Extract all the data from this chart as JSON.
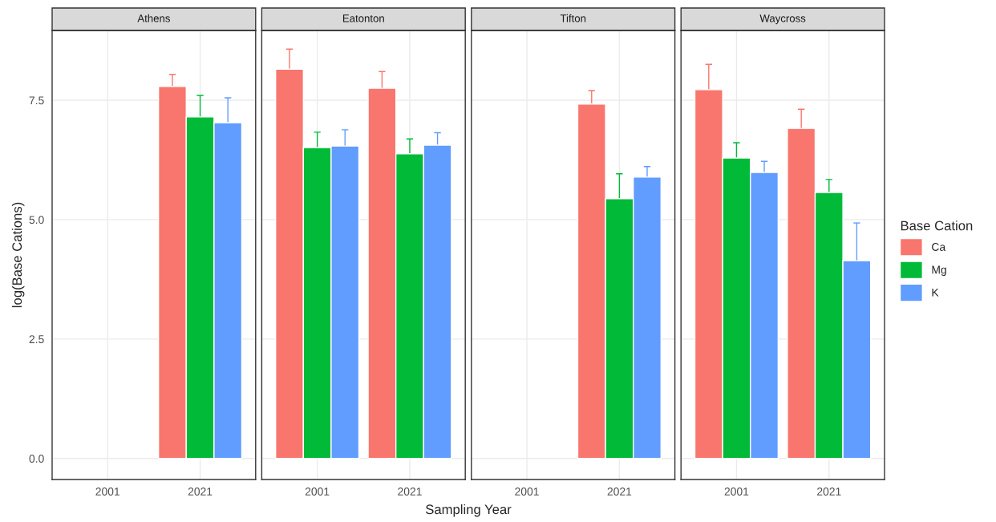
{
  "chart_data": [
    {
      "type": "bar",
      "title": "Athens",
      "categories": [
        "2001",
        "2021"
      ],
      "ylabel": "log(Base Cations)",
      "ylim": [
        -0.44,
        8.96
      ],
      "yticks": [
        {
          "value": 0,
          "label": "0.0"
        },
        {
          "value": 2.5,
          "label": "2.5"
        },
        {
          "value": 5,
          "label": "5.0"
        },
        {
          "value": 7.5,
          "label": "7.5"
        }
      ],
      "grid": true,
      "legend": "right",
      "legend_title": "Base Cation",
      "series": [
        {
          "name": "Ca",
          "color": "#f8766d",
          "values": [
            null,
            7.79
          ],
          "errors": [
            null,
            0.25
          ]
        },
        {
          "name": "Mg",
          "color": "#00ba38",
          "values": [
            null,
            7.15
          ],
          "errors": [
            null,
            0.45
          ]
        },
        {
          "name": "K",
          "color": "#619cff",
          "values": [
            null,
            7.03
          ],
          "errors": [
            null,
            0.52
          ]
        }
      ]
    },
    {
      "type": "bar",
      "title": "Eatonton",
      "categories": [
        "2001",
        "2021"
      ],
      "xlabel": "Sampling Year",
      "ylim": [
        -0.44,
        8.96
      ],
      "yticks": [
        {
          "value": 0,
          "label": null
        },
        {
          "value": 2.5,
          "label": null
        },
        {
          "value": 5,
          "label": null
        },
        {
          "value": 7.5,
          "label": null
        }
      ],
      "grid": true,
      "tick_labels": "x",
      "series": [
        {
          "color": "#f8766d",
          "values": [
            8.15,
            7.75
          ],
          "errors": [
            0.42,
            0.35
          ]
        },
        {
          "color": "#00ba38",
          "values": [
            6.51,
            6.38
          ],
          "errors": [
            0.32,
            0.31
          ]
        },
        {
          "color": "#619cff",
          "values": [
            6.54,
            6.56
          ],
          "errors": [
            0.34,
            0.26
          ]
        }
      ]
    },
    {
      "type": "bar",
      "title": "Tifton",
      "categories": [
        "2001",
        "2021"
      ],
      "ylim": [
        -0.44,
        8.96
      ],
      "yticks": [
        {
          "value": 0,
          "label": null
        },
        {
          "value": 2.5,
          "label": null
        },
        {
          "value": 5,
          "label": null
        },
        {
          "value": 7.5,
          "label": null
        }
      ],
      "grid": true,
      "tick_labels": "x",
      "series": [
        {
          "color": "#f8766d",
          "values": [
            null,
            7.42
          ],
          "errors": [
            null,
            0.28
          ]
        },
        {
          "color": "#00ba38",
          "values": [
            null,
            5.44
          ],
          "errors": [
            null,
            0.52
          ]
        },
        {
          "color": "#619cff",
          "values": [
            null,
            5.89
          ],
          "errors": [
            null,
            0.22
          ]
        }
      ]
    },
    {
      "type": "bar",
      "title": "Waycross",
      "categories": [
        "2001",
        "2021"
      ],
      "ylim": [
        -0.44,
        8.96
      ],
      "yticks": [
        {
          "value": 0,
          "label": null
        },
        {
          "value": 2.5,
          "label": null
        },
        {
          "value": 5,
          "label": null
        },
        {
          "value": 7.5,
          "label": null
        }
      ],
      "grid": true,
      "tick_labels": "x",
      "series": [
        {
          "color": "#f8766d",
          "values": [
            7.72,
            6.91
          ],
          "errors": [
            0.53,
            0.4
          ]
        },
        {
          "color": "#00ba38",
          "values": [
            6.29,
            5.57
          ],
          "errors": [
            0.32,
            0.27
          ]
        },
        {
          "color": "#619cff",
          "values": [
            5.99,
            4.14
          ],
          "errors": [
            0.23,
            0.79
          ]
        }
      ]
    }
  ]
}
